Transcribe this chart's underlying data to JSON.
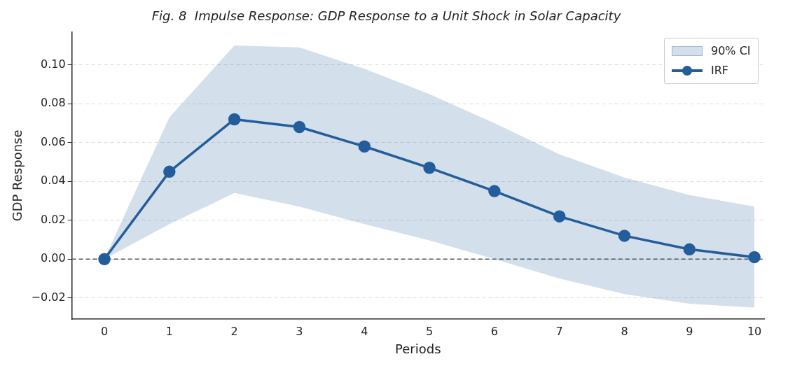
{
  "chart_data": {
    "type": "line",
    "title": "Fig. 8  Impulse Response: GDP Response to a Unit Shock in Solar Capacity",
    "xlabel": "Periods",
    "ylabel": "GDP Response",
    "x": [
      0,
      1,
      2,
      3,
      4,
      5,
      6,
      7,
      8,
      9,
      10
    ],
    "series": [
      {
        "name": "IRF",
        "color": "#235d9b",
        "marker": "circle",
        "values": [
          0,
          0.045,
          0.072,
          0.068,
          0.058,
          0.047,
          0.035,
          0.022,
          0.012,
          0.005,
          0.001
        ],
        "lower": [
          0,
          0.018,
          0.034,
          0.027,
          0.018,
          0.0096,
          0,
          -0.01,
          -0.018,
          -0.023,
          -0.025
        ],
        "upper": [
          0,
          0.073,
          0.11,
          0.109,
          0.098,
          0.085,
          0.07,
          0.054,
          0.042,
          0.033,
          0.027
        ]
      }
    ],
    "annotations": [
      "90% CI"
    ],
    "xlim": [
      -0.5,
      10.15
    ],
    "ylim": [
      -0.031,
      0.117
    ],
    "xticks": [
      0,
      1,
      2,
      3,
      4,
      5,
      6,
      7,
      8,
      9,
      10
    ],
    "yticks": [
      {
        "value": -0.02,
        "label": "−0.02"
      },
      {
        "value": 0,
        "label": "0.00"
      },
      {
        "value": 0.02,
        "label": "0.02"
      },
      {
        "value": 0.04,
        "label": "0.04"
      },
      {
        "value": 0.06,
        "label": "0.06"
      },
      {
        "value": 0.08,
        "label": "0.08"
      },
      {
        "value": 0.1,
        "label": "0.10"
      }
    ],
    "grid": "y",
    "legend": "top right",
    "ref_lines": [
      {
        "axis": "y",
        "value": 0,
        "color": "#555555",
        "line_style": "dashed"
      }
    ]
  }
}
